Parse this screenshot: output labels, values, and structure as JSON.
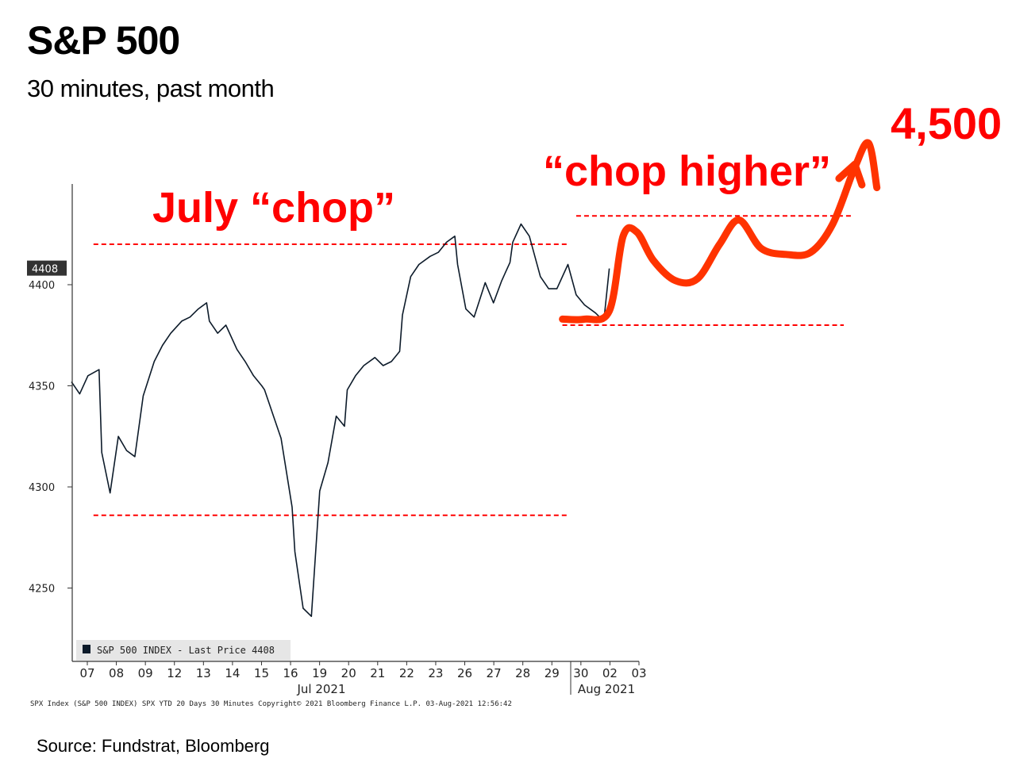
{
  "header": {
    "title": "S&P 500",
    "subtitle": "30 minutes, past month"
  },
  "source": "Source: Fundstrat, Bloomberg",
  "chart_data": {
    "type": "line",
    "title": "S&P 500",
    "subtitle": "30 minutes, past month",
    "yticks": [
      4250,
      4300,
      4350,
      4400
    ],
    "ylim": [
      4215,
      4465
    ],
    "last_price_badge": "4408",
    "x_tick_labels": [
      "07",
      "08",
      "09",
      "12",
      "13",
      "14",
      "15",
      "16",
      "19",
      "20",
      "21",
      "22",
      "23",
      "26",
      "27",
      "28",
      "29",
      "30",
      "02",
      "03"
    ],
    "x_group_labels": [
      "Jul 2021",
      "Aug 2021"
    ],
    "legend": "S&P 500 INDEX - Last Price 4408",
    "footer": "SPX Index (S&P 500 INDEX) SPX YTD 20 Days 30 Minutes   Copyright© 2021 Bloomberg Finance L.P.   03-Aug-2021 12:56:42",
    "series": [
      {
        "name": "S&P 500 INDEX",
        "color": "#0d1b2a",
        "x": [
          0,
          0.3,
          0.6,
          1.0,
          1.1,
          1.4,
          1.7,
          2.0,
          2.3,
          2.6,
          3.0,
          3.3,
          3.6,
          4.0,
          4.3,
          4.6,
          4.9,
          5.0,
          5.3,
          5.6,
          6.0,
          6.3,
          6.6,
          6.9,
          7.0,
          7.3,
          7.6,
          8.0,
          8.1,
          8.4,
          8.7,
          9.0,
          9.3,
          9.6,
          9.9,
          10.0,
          10.3,
          10.6,
          11.0,
          11.3,
          11.6,
          11.9,
          12.0,
          12.3,
          12.6,
          13.0,
          13.3,
          13.6,
          13.9,
          14.0,
          14.3,
          14.6,
          15.0,
          15.3,
          15.6,
          15.9,
          16.0,
          16.3,
          16.6,
          17.0,
          17.3,
          17.6,
          18.0,
          18.3,
          18.6,
          19.0,
          19.3,
          19.5
        ],
        "values": [
          4352,
          4346,
          4355,
          4358,
          4317,
          4297,
          4325,
          4318,
          4315,
          4345,
          4362,
          4370,
          4376,
          4382,
          4384,
          4388,
          4391,
          4382,
          4376,
          4380,
          4368,
          4362,
          4355,
          4350,
          4348,
          4336,
          4324,
          4290,
          4268,
          4240,
          4236,
          4298,
          4312,
          4335,
          4330,
          4348,
          4355,
          4360,
          4364,
          4360,
          4362,
          4367,
          4385,
          4404,
          4410,
          4414,
          4416,
          4421,
          4424,
          4410,
          4388,
          4384,
          4401,
          4391,
          4402,
          4411,
          4421,
          4430,
          4424,
          4404,
          4398,
          4398,
          4410,
          4395,
          4390,
          4386,
          4382,
          4408
        ]
      }
    ],
    "annotations": [
      {
        "text": "July “chop”",
        "color": "#ff0000"
      },
      {
        "text": "“chop higher”",
        "color": "#ff0000"
      },
      {
        "text": "4,500",
        "color": "#ff0000"
      }
    ],
    "reference_lines": [
      {
        "value": 4420,
        "from_x": 0.8,
        "to_x": 18.0,
        "color": "#ff0000",
        "style": "dashed"
      },
      {
        "value": 4286,
        "from_x": 0.8,
        "to_x": 18.0,
        "color": "#ff0000",
        "style": "dashed"
      },
      {
        "value": 4380,
        "from_x": 17.8,
        "to_x": 28.0,
        "color": "#ff0000",
        "style": "dashed"
      },
      {
        "value": 4434,
        "from_x": 18.3,
        "to_x": 28.3,
        "color": "#ff0000",
        "style": "dashed"
      }
    ],
    "projection": {
      "color": "#ff3300",
      "x": [
        17.8,
        18.6,
        19.5,
        20.0,
        20.5,
        21.1,
        21.9,
        22.7,
        23.5,
        24.2,
        25.0,
        25.9,
        26.8,
        27.6,
        28.4,
        28.9,
        29.2
      ],
      "values": [
        4383,
        4383,
        4387,
        4424,
        4426,
        4412,
        4402,
        4403,
        4420,
        4432,
        4418,
        4415,
        4416,
        4430,
        4458,
        4470,
        4448
      ]
    }
  }
}
